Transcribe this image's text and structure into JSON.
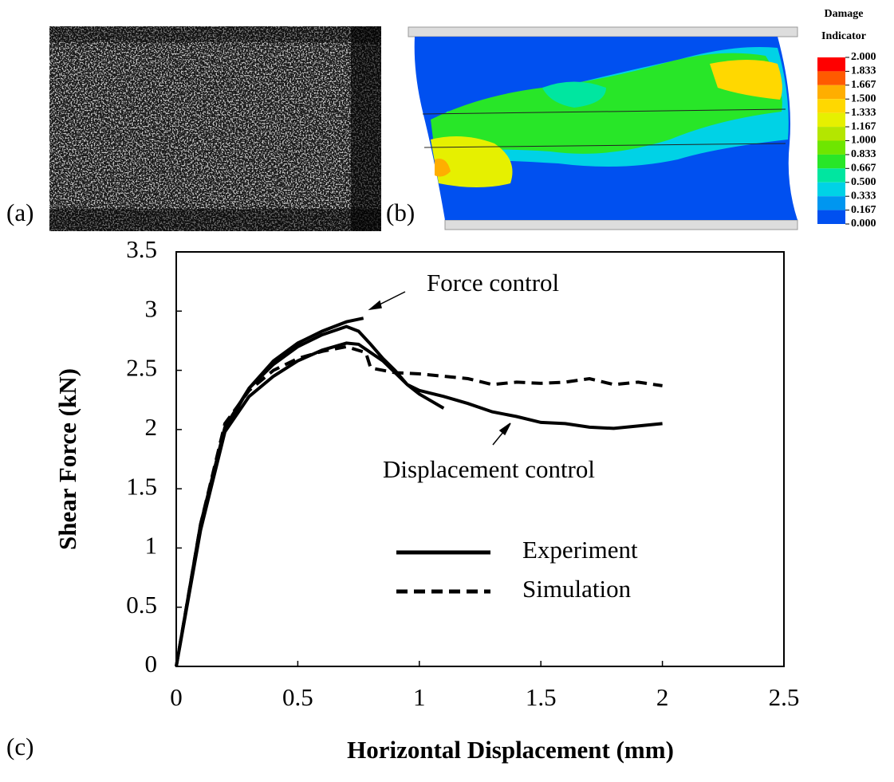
{
  "panel_labels": [
    "(a)",
    "(b)",
    "(c)"
  ],
  "colorbar": {
    "title": [
      "Damage",
      "Indicator"
    ],
    "colors": [
      "#ff0000",
      "#ff5a00",
      "#ffae00",
      "#ffd800",
      "#e6f000",
      "#b4e600",
      "#6ee600",
      "#28e628",
      "#00e6a0",
      "#00d2e6",
      "#0096f0",
      "#0050f0"
    ],
    "ticks": [
      {
        "value": 2,
        "label": "2.000"
      },
      {
        "value": 1.833,
        "label": "1.833"
      },
      {
        "value": 1.667,
        "label": "1.667"
      },
      {
        "value": 1.5,
        "label": "1.500"
      },
      {
        "value": 1.333,
        "label": "1.333"
      },
      {
        "value": 1.167,
        "label": "1.167"
      },
      {
        "value": 1,
        "label": "1.000"
      },
      {
        "value": 0.833,
        "label": "0.833"
      },
      {
        "value": 0.667,
        "label": "0.667"
      },
      {
        "value": 0.5,
        "label": "0.500"
      },
      {
        "value": 0.333,
        "label": "0.333"
      },
      {
        "value": 0.167,
        "label": "0.167"
      },
      {
        "value": 0,
        "label": "0.000"
      }
    ]
  },
  "chart_data": {
    "type": "line",
    "x_label": "Horizontal Displacement (mm)",
    "y_label": "Shear Force (kN)",
    "xlim": [
      0,
      2.5
    ],
    "xticks": [
      0,
      0.5,
      1,
      1.5,
      2,
      2.5
    ],
    "ylim": [
      0,
      3.5
    ],
    "yticks": [
      0,
      0.5,
      1,
      1.5,
      2,
      2.5,
      3,
      3.5
    ],
    "grid": false,
    "legend": "lower right",
    "annotations": [
      "Force control",
      "Displacement control"
    ],
    "series": [
      {
        "name": "Experiment",
        "color": "#000000",
        "style": "solid",
        "x": [
          0,
          0.1,
          0.2,
          0.3,
          0.4,
          0.5,
          0.6,
          0.7,
          0.77,
          null,
          0,
          0.1,
          0.2,
          0.3,
          0.4,
          0.5,
          0.6,
          0.7,
          0.75,
          0.8,
          0.85,
          0.9,
          0.95,
          1.0,
          1.05,
          1.1,
          null,
          0,
          0.1,
          0.2,
          0.3,
          0.4,
          0.5,
          0.6,
          0.7,
          0.75,
          0.8,
          0.85,
          0.9,
          0.95,
          1.0,
          1.1,
          1.2,
          1.3,
          1.4,
          1.5,
          1.6,
          1.7,
          1.8,
          1.9,
          2.0
        ],
        "values": [
          0,
          1.18,
          2.0,
          2.35,
          2.58,
          2.73,
          2.83,
          2.91,
          2.94,
          null,
          0,
          1.2,
          2.02,
          2.35,
          2.55,
          2.7,
          2.8,
          2.87,
          2.83,
          2.72,
          2.6,
          2.5,
          2.38,
          2.3,
          2.24,
          2.18,
          null,
          0,
          1.15,
          1.98,
          2.28,
          2.45,
          2.58,
          2.67,
          2.73,
          2.72,
          2.65,
          2.58,
          2.48,
          2.38,
          2.33,
          2.28,
          2.22,
          2.15,
          2.11,
          2.06,
          2.05,
          2.02,
          2.01,
          2.03,
          2.05
        ]
      },
      {
        "name": "Simulation",
        "color": "#000000",
        "style": "dashed",
        "x": [
          0,
          0.1,
          0.2,
          0.3,
          0.4,
          0.5,
          0.6,
          0.7,
          0.78,
          0.8,
          0.9,
          1.0,
          1.1,
          1.2,
          1.3,
          1.4,
          1.5,
          1.6,
          1.7,
          1.8,
          1.9,
          2.0
        ],
        "values": [
          0,
          1.2,
          2.05,
          2.33,
          2.5,
          2.6,
          2.66,
          2.7,
          2.65,
          2.52,
          2.48,
          2.47,
          2.45,
          2.43,
          2.38,
          2.4,
          2.39,
          2.4,
          2.43,
          2.38,
          2.4,
          2.37
        ]
      }
    ]
  }
}
